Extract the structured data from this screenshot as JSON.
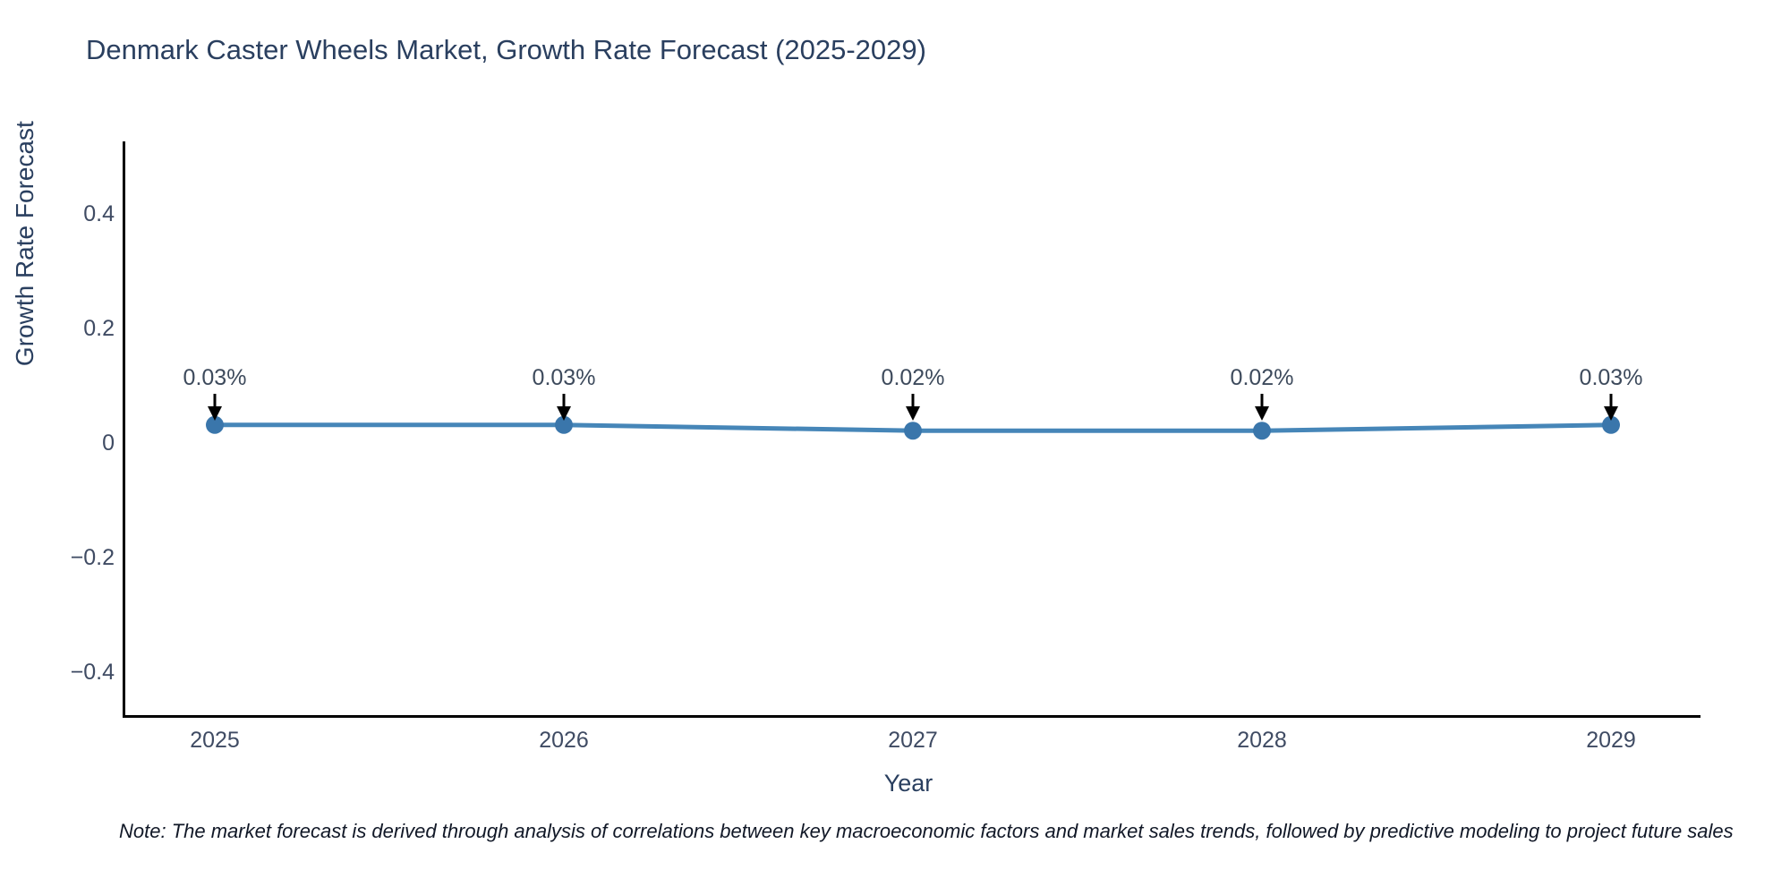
{
  "title": "Denmark Caster Wheels Market, Growth Rate Forecast (2025-2029)",
  "chart_data": {
    "type": "line",
    "x": [
      "2025",
      "2026",
      "2027",
      "2028",
      "2029"
    ],
    "series": [
      {
        "name": "Growth Rate Forecast",
        "values": [
          0.03,
          0.03,
          0.02,
          0.02,
          0.03
        ]
      }
    ],
    "point_labels": [
      "0.03%",
      "0.03%",
      "0.02%",
      "0.02%",
      "0.03%"
    ],
    "title": "Denmark Caster Wheels Market, Growth Rate Forecast (2025-2029)",
    "xlabel": "Year",
    "ylabel": "Growth Rate Forecast",
    "ylim": [
      -0.5,
      0.5
    ],
    "yticks": [
      0.4,
      0.2,
      0,
      -0.2,
      -0.4
    ],
    "grid": false,
    "legend_position": "none",
    "line_color": "#4686b8",
    "marker_color": "#3a76ab",
    "arrow_color": "#000000",
    "axis_line_color": "#000000",
    "tick_label_color": "#3f4b63",
    "annotation_text_color": "#3d4a5c"
  },
  "footnote": "Note: The market forecast is derived through analysis of correlations between key macroeconomic factors and market sales trends, followed by predictive modeling to project future sales"
}
